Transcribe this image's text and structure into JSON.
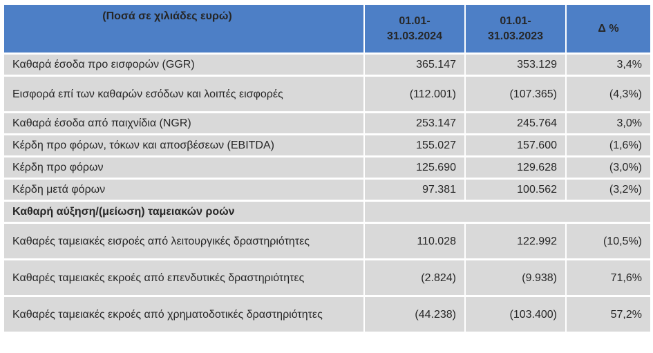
{
  "header": {
    "col0": "(Ποσά σε χιλιάδες ευρώ)",
    "col1_line1": "01.01-",
    "col1_line2": "31.03.2024",
    "col2_line1": "01.01-",
    "col2_line2": "31.03.2023",
    "col3": "Δ %"
  },
  "rows": [
    {
      "label": "Καθαρά έσοδα προ εισφορών (GGR)",
      "v2024": "365.147",
      "v2023": "353.129",
      "delta": "3,4%"
    },
    {
      "label": "Εισφορά επί των καθαρών εσόδων και λοιπές εισφορές",
      "v2024": "(112.001)",
      "v2023": "(107.365)",
      "delta": "(4,3%)"
    },
    {
      "label": "Καθαρά έσοδα από παιχνίδια (NGR)",
      "v2024": "253.147",
      "v2023": "245.764",
      "delta": "3,0%"
    },
    {
      "label": "Κέρδη προ φόρων, τόκων και αποσβέσεων (EBITDA)",
      "v2024": "155.027",
      "v2023": "157.600",
      "delta": "(1,6%)"
    },
    {
      "label": "Κέρδη προ φόρων",
      "v2024": "125.690",
      "v2023": "129.628",
      "delta": "(3,0%)"
    },
    {
      "label": "Κέρδη μετά φόρων",
      "v2024": "97.381",
      "v2023": "100.562",
      "delta": "(3,2%)"
    }
  ],
  "section_title": "Καθαρή αύξηση/(μείωση) ταμειακών ροών",
  "cash_rows": [
    {
      "label": "Καθαρές ταμειακές εισροές από λειτουργικές δραστηριότητες",
      "v2024": "110.028",
      "v2023": "122.992",
      "delta": "(10,5%)"
    },
    {
      "label": "Καθαρές ταμειακές εκροές από επενδυτικές δραστηριότητες",
      "v2024": "(2.824)",
      "v2023": "(9.938)",
      "delta": "71,6%"
    },
    {
      "label": "Καθαρές ταμειακές εκροές από χρηματοδοτικές δραστηριότητες",
      "v2024": "(44.238)",
      "v2023": "(103.400)",
      "delta": "57,2%"
    }
  ],
  "colors": {
    "header_bg": "#4d7fc6",
    "row_bg": "#d9d9d9"
  }
}
